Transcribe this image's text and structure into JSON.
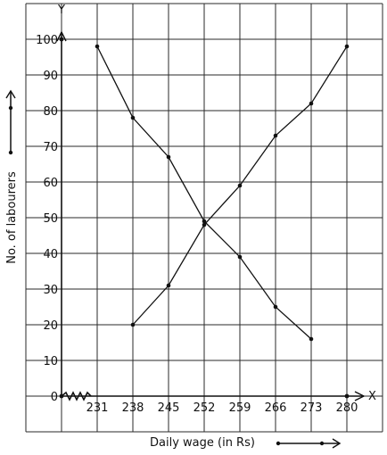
{
  "chart_data": {
    "type": "line",
    "title": "",
    "xlabel": "Daily wage (in Rs)",
    "ylabel": "No. of labourers",
    "x_axis_letter": "X",
    "y_axis_letter": "Y",
    "origin_label": "0",
    "x_ticks": [
      "231",
      "238",
      "245",
      "252",
      "259",
      "266",
      "273",
      "280"
    ],
    "y_ticks": [
      "10",
      "20",
      "30",
      "40",
      "50",
      "60",
      "70",
      "80",
      "90",
      "100"
    ],
    "xlim": [
      224,
      280
    ],
    "ylim": [
      0,
      100
    ],
    "x_axis_break": true,
    "grid": true,
    "series": [
      {
        "x": [
          231,
          238,
          245,
          252,
          259,
          266,
          273
        ],
        "y": [
          98,
          78,
          67,
          49,
          39,
          25,
          16
        ]
      },
      {
        "x": [
          238,
          245,
          252,
          259,
          266,
          273,
          280
        ],
        "y": [
          20,
          31,
          48,
          59,
          73,
          82,
          98
        ]
      }
    ]
  }
}
